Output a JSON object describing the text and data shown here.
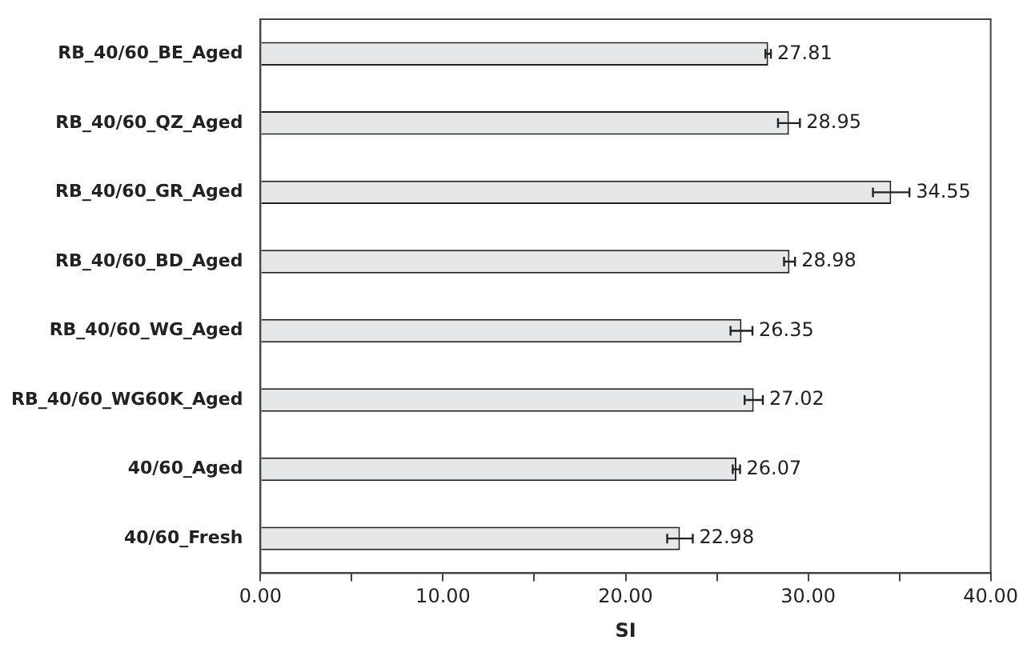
{
  "chart_data": {
    "type": "bar",
    "orientation": "horizontal",
    "xlabel": "SI",
    "categories": [
      "RB_40/60_BE_Aged",
      "RB_40/60_QZ_Aged",
      "RB_40/60_GR_Aged",
      "RB_40/60_BD_Aged",
      "RB_40/60_WG_Aged",
      "RB_40/60_WG60K_Aged",
      "40/60_Aged",
      "40/60_Fresh"
    ],
    "values": [
      27.81,
      28.95,
      34.55,
      28.98,
      26.35,
      27.02,
      26.07,
      22.98
    ],
    "errors": [
      0.15,
      0.6,
      1.0,
      0.3,
      0.6,
      0.5,
      0.2,
      0.7
    ],
    "color": "#e6e7e8",
    "xlim": [
      0,
      40
    ],
    "xticks": [
      {
        "value": 0,
        "label": "0.00"
      },
      {
        "value": 5,
        "label": null
      },
      {
        "value": 10,
        "label": "10.00"
      },
      {
        "value": 15,
        "label": null
      },
      {
        "value": 20,
        "label": "20.00"
      },
      {
        "value": 25,
        "label": null
      },
      {
        "value": 30,
        "label": "30.00"
      },
      {
        "value": 35,
        "label": null
      },
      {
        "value": 40,
        "label": "40.00"
      }
    ],
    "data_labels": true,
    "grid": false,
    "legend": false
  }
}
